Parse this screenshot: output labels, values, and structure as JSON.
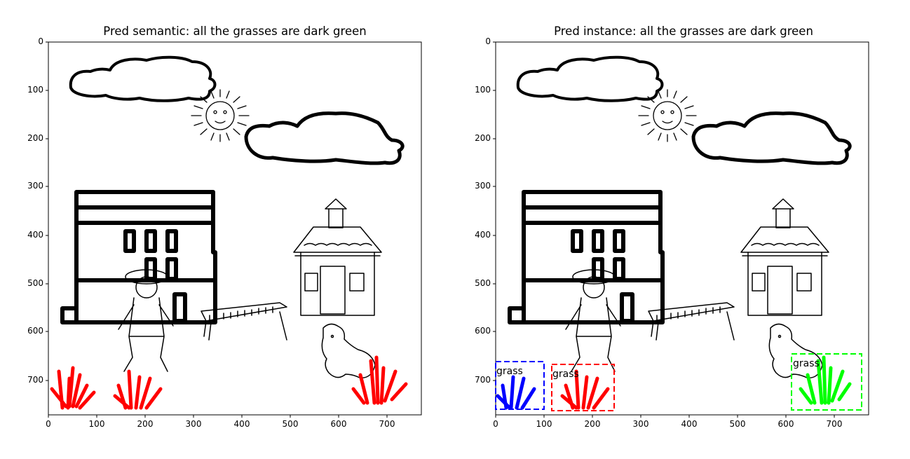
{
  "panels": [
    {
      "title": "Pred semantic: all the grasses are dark green",
      "x_ticks": [
        "0",
        "100",
        "200",
        "300",
        "400",
        "500",
        "600",
        "700"
      ],
      "y_ticks": [
        "0",
        "100",
        "200",
        "300",
        "400",
        "500",
        "600",
        "700"
      ],
      "boxes": []
    },
    {
      "title": "Pred instance: all the grasses are dark green",
      "x_ticks": [
        "0",
        "100",
        "200",
        "300",
        "400",
        "500",
        "600",
        "700"
      ],
      "y_ticks": [
        "0",
        "100",
        "200",
        "300",
        "400",
        "500",
        "600",
        "700"
      ],
      "boxes": [
        {
          "label": "grass",
          "color": "#0000ff"
        },
        {
          "label": "grass",
          "color": "#ff0000"
        },
        {
          "label": "grass",
          "color": "#00ff00"
        }
      ]
    }
  ],
  "colors": {
    "grass_semantic": "#ff0000",
    "grass_instance_1": "#0000ff",
    "grass_instance_2": "#ff0000",
    "grass_instance_3": "#00ff00",
    "lineart": "#000000"
  },
  "icons": [
    "cloud",
    "sun",
    "building",
    "boy-with-hat",
    "xylophone",
    "schoolhouse",
    "puppy",
    "grass"
  ]
}
